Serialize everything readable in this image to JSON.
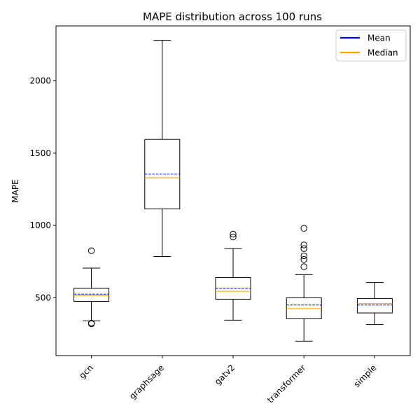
{
  "chart_data": {
    "type": "box",
    "title": "MAPE distribution across 100 runs",
    "xlabel": "",
    "ylabel": "MAPE",
    "ylim": [
      100,
      2380
    ],
    "yticks": [
      500,
      1000,
      1500,
      2000
    ],
    "grid": false,
    "legend_position": "top-right",
    "legend": [
      {
        "label": "Mean",
        "color": "#0000ff"
      },
      {
        "label": "Median",
        "color": "#ffa500"
      }
    ],
    "categories": [
      "gcn",
      "graphsage",
      "gatv2",
      "transformer",
      "simple"
    ],
    "boxes": [
      {
        "name": "gcn",
        "whisker_low": 340,
        "q1": 475,
        "median": 515,
        "mean": 525,
        "q3": 565,
        "whisker_high": 705,
        "outliers": [
          825,
          325,
          320
        ]
      },
      {
        "name": "graphsage",
        "whisker_low": 785,
        "q1": 1115,
        "median": 1330,
        "mean": 1355,
        "q3": 1595,
        "whisker_high": 2280,
        "outliers": []
      },
      {
        "name": "gatv2",
        "whisker_low": 345,
        "q1": 490,
        "median": 545,
        "mean": 565,
        "q3": 640,
        "whisker_high": 840,
        "outliers": [
          940,
          920
        ]
      },
      {
        "name": "transformer",
        "whisker_low": 200,
        "q1": 355,
        "median": 425,
        "mean": 450,
        "q3": 500,
        "whisker_high": 660,
        "outliers": [
          980,
          865,
          840,
          790,
          765,
          715
        ]
      },
      {
        "name": "simple",
        "whisker_low": 315,
        "q1": 395,
        "median": 460,
        "mean": 450,
        "q3": 495,
        "whisker_high": 605,
        "outliers": []
      }
    ]
  }
}
